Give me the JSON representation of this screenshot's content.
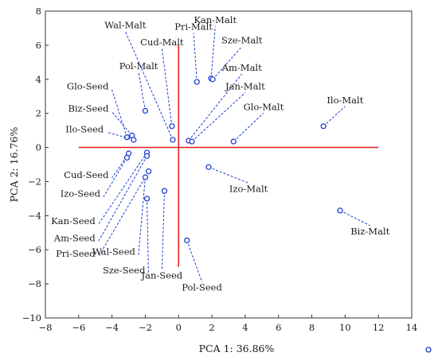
{
  "chart_data": {
    "type": "scatter",
    "xlabel": "PCA 1: 36.86%",
    "ylabel": "PCA 2: 16.76%",
    "xlim": [
      -8,
      14
    ],
    "ylim": [
      -10,
      8
    ],
    "xticks": [
      -8,
      -6,
      -4,
      -2,
      0,
      2,
      4,
      6,
      8,
      10,
      12,
      14
    ],
    "yticks": [
      -10,
      -8,
      -6,
      -4,
      -2,
      0,
      2,
      4,
      6,
      8
    ],
    "x_tick_labels": [
      "−8",
      "−6",
      "−4",
      "−2",
      "0",
      "2",
      "4",
      "6",
      "8",
      "10",
      "12",
      "14"
    ],
    "y_tick_labels": [
      "−10",
      "−8",
      "−6",
      "−4",
      "−2",
      "0",
      "2",
      "4",
      "6",
      "8"
    ],
    "grid": false,
    "colors": {
      "points": "#1f3fd6",
      "leader_lines": "#1f3fd6",
      "crosshair": "#e01b1b",
      "frame": "#333333"
    },
    "crosshair": {
      "horizontal": {
        "x": [
          -6,
          12
        ],
        "y": 0
      },
      "vertical": {
        "x": 0,
        "y": [
          -7,
          6
        ]
      }
    },
    "points": [
      {
        "x": -3.1,
        "y": 0.6,
        "label": "Glo-Seed",
        "lx": -4.2,
        "ly": 3.4,
        "anchor": "end"
      },
      {
        "x": -2.8,
        "y": 0.7,
        "label": "Biz-Seed",
        "lx": -4.2,
        "ly": 2.1,
        "anchor": "end"
      },
      {
        "x": -2.7,
        "y": 0.45,
        "label": "Ilo-Seed",
        "lx": -4.5,
        "ly": 0.9,
        "anchor": "end"
      },
      {
        "x": -3.0,
        "y": -0.35,
        "label": "Cud-Seed",
        "lx": -4.2,
        "ly": -1.8,
        "anchor": "end"
      },
      {
        "x": -3.1,
        "y": -0.6,
        "label": "Izo-Seed",
        "lx": -4.7,
        "ly": -2.9,
        "anchor": "end"
      },
      {
        "x": -1.9,
        "y": -0.3,
        "label": "Kan-Seed",
        "lx": -5.0,
        "ly": -4.5,
        "anchor": "end"
      },
      {
        "x": -1.9,
        "y": -0.5,
        "label": "Am-Seed",
        "lx": -5.0,
        "ly": -5.5,
        "anchor": "end"
      },
      {
        "x": -1.8,
        "y": -1.4,
        "label": "Pri-Seed",
        "lx": -5.0,
        "ly": -6.4,
        "anchor": "end"
      },
      {
        "x": -2.0,
        "y": -1.75,
        "label": "Wal-Seed",
        "lx": -2.6,
        "ly": -6.3,
        "anchor": "end"
      },
      {
        "x": -1.9,
        "y": -3.0,
        "label": "Sze-Seed",
        "lx": -2.0,
        "ly": -7.4,
        "anchor": "end"
      },
      {
        "x": -0.85,
        "y": -2.55,
        "label": "Jan-Seed",
        "lx": -1.0,
        "ly": -7.7,
        "anchor": "middle"
      },
      {
        "x": 0.5,
        "y": -5.45,
        "label": "Pol-Seed",
        "lx": 1.4,
        "ly": -8.4,
        "anchor": "middle"
      },
      {
        "x": -2.0,
        "y": 2.15,
        "label": "Pol-Malt",
        "lx": -2.4,
        "ly": 4.6,
        "anchor": "middle"
      },
      {
        "x": -0.4,
        "y": 1.25,
        "label": "Cud-Malt",
        "lx": -1.0,
        "ly": 6.0,
        "anchor": "middle"
      },
      {
        "x": -0.35,
        "y": 0.45,
        "label": "Wal-Malt",
        "lx": -3.2,
        "ly": 7.0,
        "anchor": "middle"
      },
      {
        "x": 1.1,
        "y": 3.85,
        "label": "Pri-Malt",
        "lx": 0.9,
        "ly": 6.9,
        "anchor": "middle"
      },
      {
        "x": 1.95,
        "y": 4.05,
        "label": "Kan-Malt",
        "lx": 2.2,
        "ly": 7.3,
        "anchor": "middle"
      },
      {
        "x": 2.05,
        "y": 4.0,
        "label": "Sze-Malt",
        "lx": 3.8,
        "ly": 6.1,
        "anchor": "middle"
      },
      {
        "x": 0.6,
        "y": 0.4,
        "label": "Am-Malt",
        "lx": 3.8,
        "ly": 4.5,
        "anchor": "middle"
      },
      {
        "x": 0.8,
        "y": 0.35,
        "label": "Jan-Malt",
        "lx": 4.0,
        "ly": 3.4,
        "anchor": "middle"
      },
      {
        "x": 3.3,
        "y": 0.35,
        "label": "Glo-Malt",
        "lx": 5.1,
        "ly": 2.2,
        "anchor": "middle"
      },
      {
        "x": 8.7,
        "y": 1.25,
        "label": "Ilo-Malt",
        "lx": 10.0,
        "ly": 2.6,
        "anchor": "middle"
      },
      {
        "x": 1.8,
        "y": -1.15,
        "label": "Izo-Malt",
        "lx": 4.2,
        "ly": -2.6,
        "anchor": "middle"
      },
      {
        "x": 9.7,
        "y": -3.7,
        "label": "Biz-Malt",
        "lx": 11.5,
        "ly": -5.1,
        "anchor": "middle"
      }
    ]
  }
}
